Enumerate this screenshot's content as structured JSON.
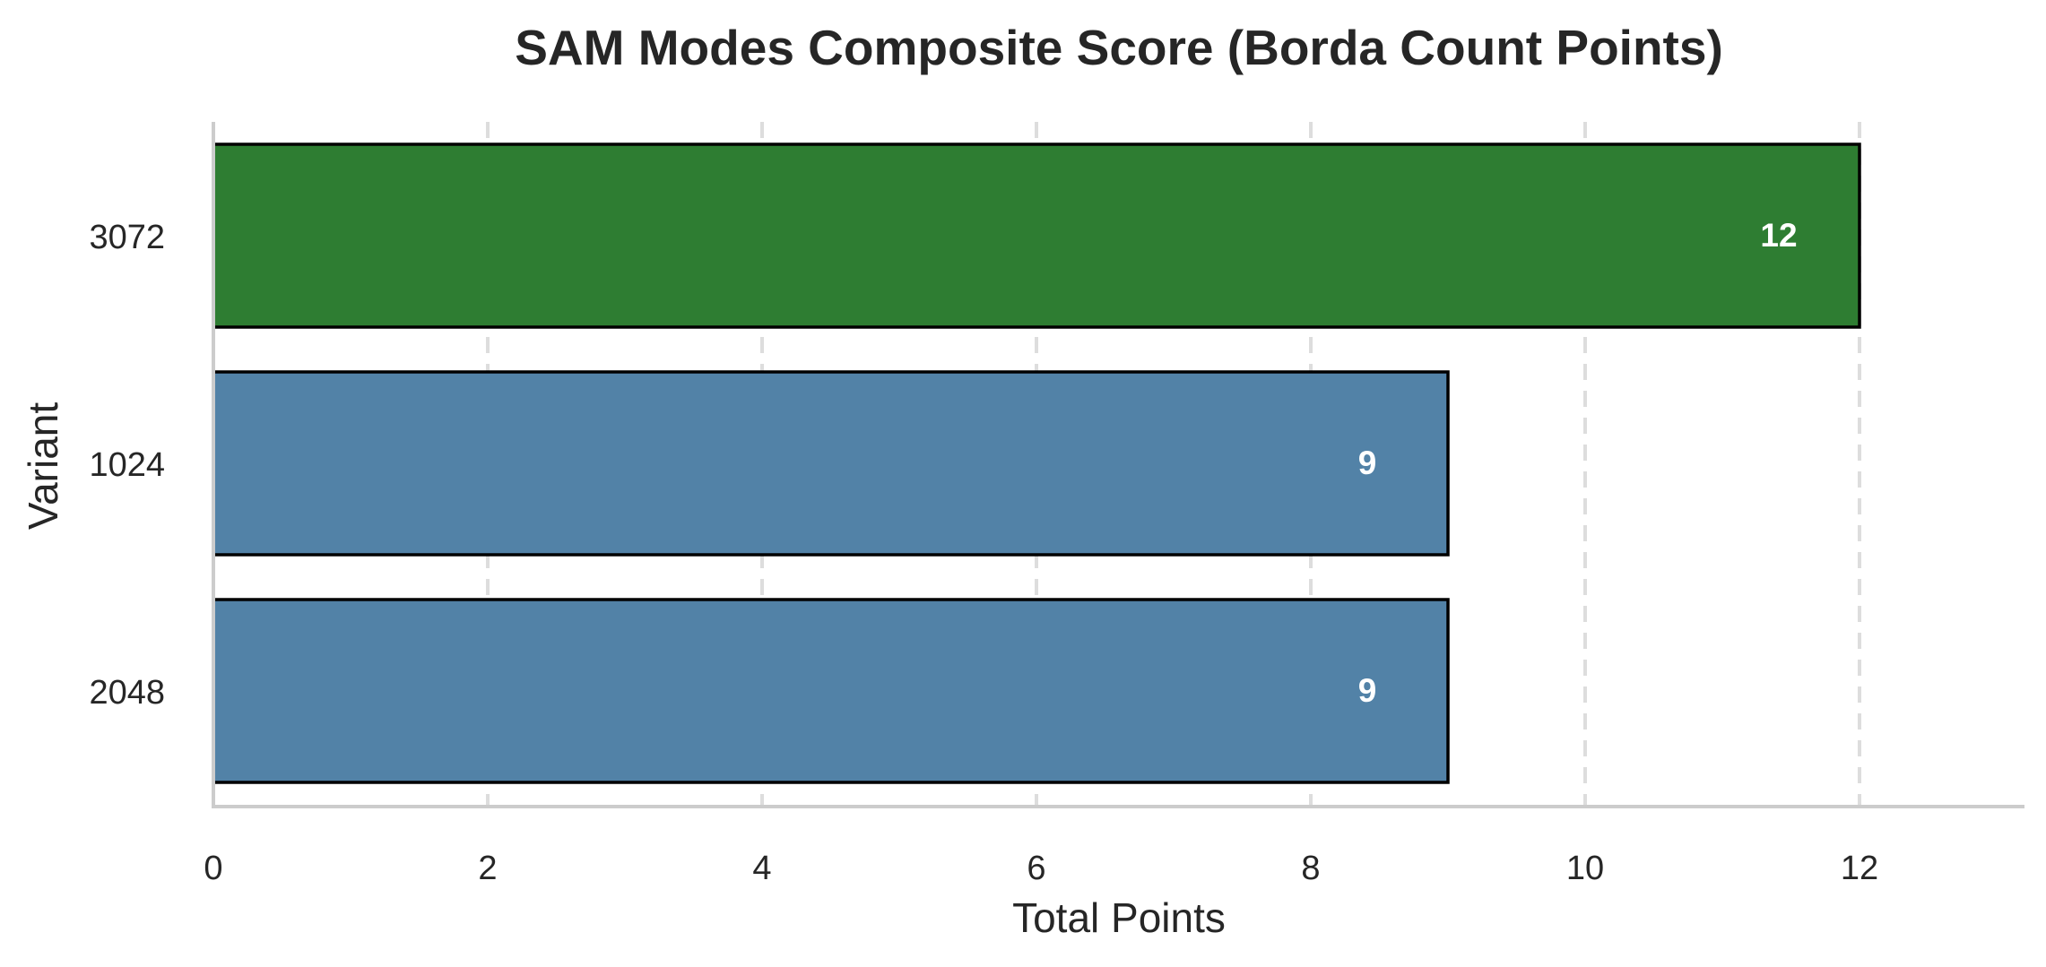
{
  "chart_data": {
    "type": "bar",
    "orientation": "horizontal",
    "title": "SAM Modes Composite Score (Borda Count Points)",
    "xlabel": "Total Points",
    "ylabel": "Variant",
    "xlim": [
      0,
      13.2
    ],
    "xticks": [
      0,
      2,
      4,
      6,
      8,
      10,
      12
    ],
    "grid": true,
    "grid_style": "dashed-vertical",
    "categories": [
      "3072",
      "1024",
      "2048"
    ],
    "values": [
      12,
      9,
      9
    ],
    "data_labels": [
      "12",
      "9",
      "9"
    ],
    "bar_colors": [
      "#2e7d32",
      "#5282a7",
      "#5282a7"
    ],
    "edge_color": "#000000",
    "grid_color": "#dddddd",
    "axis_color": "#cccccc"
  }
}
